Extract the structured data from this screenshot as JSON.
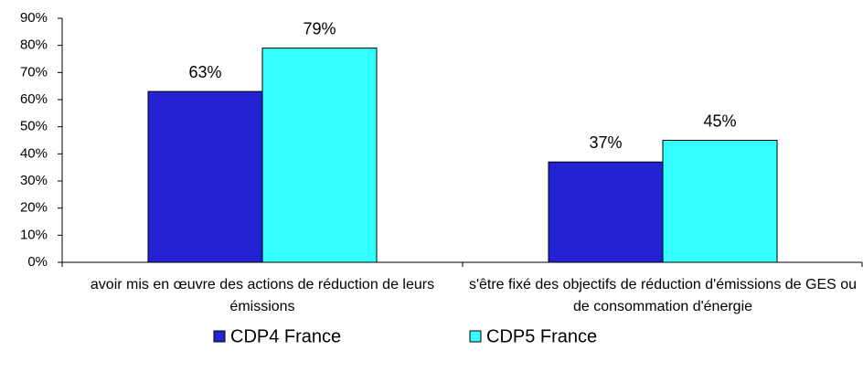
{
  "chart_data": {
    "type": "bar",
    "categories": [
      "avoir mis en œuvre des actions de réduction de leurs émissions",
      "s'être fixé des objectifs de réduction d'émissions de GES ou de consommation d'énergie"
    ],
    "series": [
      {
        "name": "CDP4 France",
        "color": "#2222d2",
        "values": [
          63,
          37
        ],
        "value_labels": [
          "63%",
          "37%"
        ]
      },
      {
        "name": "CDP5 France",
        "color": "#33ffff",
        "values": [
          79,
          45
        ],
        "value_labels": [
          "79%",
          "45%"
        ]
      }
    ],
    "ylim": [
      0,
      90
    ],
    "yticks": [
      {
        "value": 0,
        "label": "0%"
      },
      {
        "value": 10,
        "label": "10%"
      },
      {
        "value": 20,
        "label": "20%"
      },
      {
        "value": 30,
        "label": "30%"
      },
      {
        "value": 40,
        "label": "40%"
      },
      {
        "value": 50,
        "label": "50%"
      },
      {
        "value": 60,
        "label": "60%"
      },
      {
        "value": 70,
        "label": "70%"
      },
      {
        "value": 80,
        "label": "80%"
      },
      {
        "value": 90,
        "label": "90%"
      }
    ],
    "grid": false,
    "legend": "bottom"
  }
}
